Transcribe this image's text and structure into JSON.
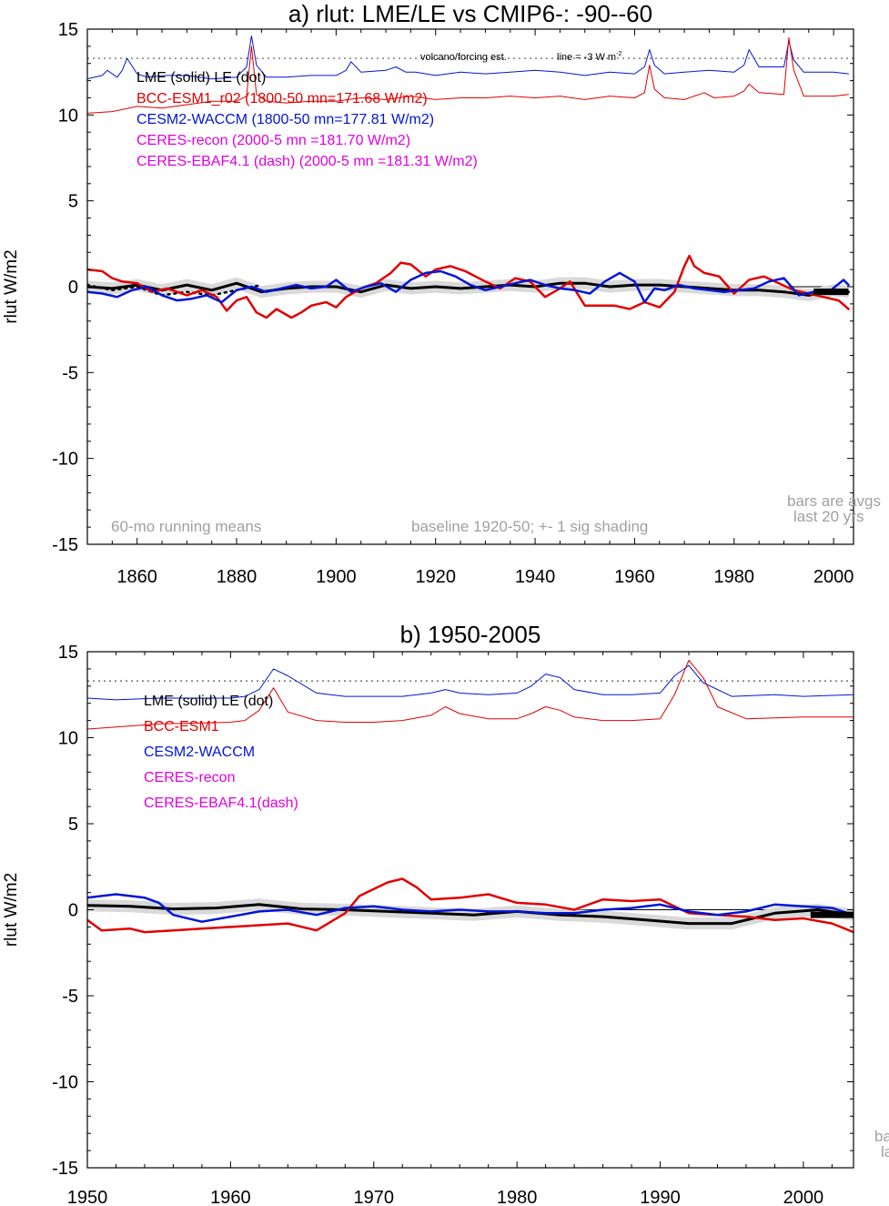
{
  "colors": {
    "lme": "#000000",
    "bcc": "#e00000",
    "cesm": "#0016d6",
    "ceres": "#e000e0",
    "note": "#a0a0a0",
    "shade": "#d9d9d9"
  },
  "chart_data": [
    {
      "type": "line",
      "title": "a) rlut: LME/LE vs CMIP6-: -90--60",
      "ylabel": "rlut W/m2",
      "xlim": [
        1850,
        2004
      ],
      "ylim": [
        -15,
        15
      ],
      "xticks": [
        1860,
        1880,
        1900,
        1920,
        1940,
        1960,
        1980,
        2000
      ],
      "yticks": [
        15,
        10,
        5,
        0,
        -5,
        -10,
        -15
      ],
      "ref_line": 13.3,
      "legend": [
        {
          "text": "LME (solid)   LE (dot)",
          "color": "lme"
        },
        {
          "text": "BCC-ESM1_r02 (1800-50 mn=171.68 W/m2)",
          "color": "bcc"
        },
        {
          "text": "CESM2-WACCM (1800-50 mn=177.81 W/m2)",
          "color": "cesm"
        },
        {
          "text": "CERES-recon (2000-5 mn =181.70 W/m2)",
          "color": "ceres"
        },
        {
          "text": "CERES-EBAF4.1 (dash) (2000-5 mn =181.31 W/m2)",
          "color": "ceres"
        }
      ],
      "annotations": {
        "volcano": "volcano/forcing est.",
        "line_label": "line = -3 W m",
        "line_sup": "-2",
        "running": "60-mo running means",
        "baseline": "baseline 1920-50; +- 1 sig shading",
        "bars1": "bars are avgs",
        "bars2": "last 20 yrs"
      },
      "series": [
        {
          "name": "CESM2-WACCM forcing",
          "color": "cesm",
          "width": 1,
          "x": [
            1850,
            1853,
            1854,
            1856,
            1857,
            1858,
            1860,
            1862,
            1866,
            1870,
            1875,
            1880,
            1882,
            1883,
            1884,
            1886,
            1890,
            1895,
            1900,
            1902,
            1903,
            1905,
            1910,
            1912,
            1914,
            1916,
            1920,
            1925,
            1930,
            1935,
            1940,
            1945,
            1950,
            1955,
            1960,
            1962,
            1963,
            1964,
            1966,
            1970,
            1975,
            1980,
            1982,
            1983,
            1985,
            1990,
            1991,
            1992,
            1994,
            2000,
            2003
          ],
          "y": [
            12.1,
            12.3,
            12.6,
            12.2,
            12.6,
            13.3,
            12.4,
            12.2,
            12.3,
            12.3,
            12.1,
            12.2,
            12.8,
            14.6,
            12.9,
            12.2,
            12.2,
            12.3,
            12.3,
            12.6,
            13.1,
            12.5,
            12.6,
            12.8,
            12.5,
            12.5,
            12.3,
            12.5,
            12.4,
            12.5,
            12.6,
            12.5,
            12.3,
            12.5,
            12.4,
            12.8,
            13.8,
            12.9,
            12.4,
            12.5,
            12.6,
            12.5,
            12.9,
            13.8,
            12.8,
            12.8,
            14.3,
            13.2,
            12.5,
            12.5,
            12.4
          ]
        },
        {
          "name": "BCC-ESM1 forcing",
          "color": "bcc",
          "width": 1,
          "x": [
            1850,
            1855,
            1860,
            1865,
            1870,
            1875,
            1880,
            1882,
            1883,
            1884,
            1886,
            1890,
            1895,
            1900,
            1905,
            1910,
            1915,
            1920,
            1925,
            1930,
            1935,
            1940,
            1945,
            1950,
            1955,
            1960,
            1962,
            1963,
            1964,
            1966,
            1970,
            1974,
            1976,
            1980,
            1982,
            1983,
            1985,
            1990,
            1991,
            1992,
            1994,
            2000,
            2003
          ],
          "y": [
            10.1,
            10.2,
            10.5,
            10.4,
            10.6,
            10.8,
            10.8,
            11.1,
            14.0,
            11.2,
            10.8,
            10.7,
            10.8,
            10.8,
            11.0,
            10.9,
            11.1,
            10.9,
            11.0,
            11.0,
            11.1,
            11.0,
            11.1,
            10.9,
            11.1,
            11.0,
            11.3,
            12.9,
            11.5,
            11.0,
            10.9,
            11.3,
            11.0,
            11.1,
            11.4,
            11.8,
            11.3,
            11.2,
            14.5,
            12.6,
            11.1,
            11.1,
            11.2
          ]
        },
        {
          "name": "LME",
          "color": "lme",
          "width": 3,
          "band": 0.35,
          "x": [
            1850,
            1855,
            1860,
            1865,
            1870,
            1875,
            1880,
            1885,
            1890,
            1895,
            1900,
            1905,
            1910,
            1915,
            1920,
            1925,
            1930,
            1935,
            1940,
            1945,
            1950,
            1955,
            1960,
            1965,
            1970,
            1975,
            1980,
            1985,
            1990,
            1995,
            2000,
            2003
          ],
          "y": [
            0.0,
            -0.1,
            0.1,
            -0.2,
            0.1,
            -0.2,
            0.2,
            -0.3,
            -0.1,
            0.0,
            0.0,
            -0.3,
            0.1,
            -0.1,
            0.0,
            -0.1,
            0.0,
            0.1,
            0.0,
            0.2,
            0.2,
            0.0,
            0.1,
            0.1,
            0.0,
            -0.1,
            -0.2,
            -0.2,
            -0.3,
            -0.5,
            -0.2,
            -0.3
          ]
        },
        {
          "name": "LE",
          "color": "lme",
          "width": 2.5,
          "dash": "2,5",
          "x": [
            1850,
            1855,
            1860,
            1865,
            1870,
            1875,
            1880,
            1885
          ],
          "y": [
            0.1,
            -0.2,
            0.0,
            -0.5,
            -0.3,
            -0.5,
            -0.2,
            0.1
          ]
        },
        {
          "name": "BCC-ESM1",
          "color": "bcc",
          "width": 2.5,
          "x": [
            1850,
            1853,
            1855,
            1857,
            1860,
            1863,
            1866,
            1870,
            1873,
            1876,
            1878,
            1880,
            1882,
            1884,
            1886,
            1888,
            1891,
            1893,
            1895,
            1898,
            1900,
            1902,
            1905,
            1908,
            1911,
            1913,
            1915,
            1918,
            1920,
            1923,
            1926,
            1930,
            1933,
            1936,
            1939,
            1942,
            1945,
            1947,
            1950,
            1953,
            1956,
            1959,
            1962,
            1965,
            1968,
            1970,
            1971,
            1972,
            1974,
            1977,
            1980,
            1983,
            1986,
            1989,
            1992,
            1995,
            1998,
            2001,
            2003
          ],
          "y": [
            1.0,
            0.9,
            0.5,
            0.3,
            0.2,
            -0.3,
            -0.1,
            -0.5,
            -0.2,
            -0.6,
            -1.4,
            -0.8,
            -0.6,
            -1.5,
            -1.8,
            -1.3,
            -1.8,
            -1.5,
            -1.1,
            -0.9,
            -1.2,
            -0.6,
            -0.1,
            0.2,
            0.8,
            1.4,
            1.3,
            0.6,
            1.0,
            1.2,
            0.9,
            0.3,
            -0.1,
            0.5,
            0.3,
            -0.6,
            -0.1,
            0.3,
            -1.1,
            -1.1,
            -1.1,
            -1.3,
            -0.9,
            -1.2,
            -0.3,
            1.2,
            1.8,
            1.2,
            0.8,
            0.6,
            -0.4,
            0.4,
            0.6,
            0.2,
            -0.2,
            -0.4,
            -0.6,
            -0.8,
            -1.3
          ]
        },
        {
          "name": "CESM2-WACCM",
          "color": "cesm",
          "width": 2.5,
          "x": [
            1850,
            1853,
            1856,
            1859,
            1862,
            1865,
            1868,
            1871,
            1874,
            1877,
            1880,
            1883,
            1886,
            1889,
            1892,
            1895,
            1898,
            1900,
            1903,
            1906,
            1909,
            1912,
            1915,
            1918,
            1921,
            1924,
            1927,
            1930,
            1933,
            1936,
            1939,
            1942,
            1945,
            1948,
            1951,
            1954,
            1957,
            1960,
            1962,
            1964,
            1966,
            1969,
            1972,
            1975,
            1978,
            1981,
            1984,
            1987,
            1990,
            1993,
            1996,
            1999,
            2002,
            2003
          ],
          "y": [
            -0.3,
            -0.4,
            -0.6,
            -0.2,
            0.0,
            -0.5,
            -0.8,
            -0.7,
            -0.5,
            -0.9,
            -0.2,
            0.0,
            -0.3,
            -0.1,
            0.1,
            -0.1,
            0.0,
            0.4,
            -0.3,
            0.0,
            0.2,
            -0.3,
            0.4,
            0.8,
            0.9,
            0.6,
            0.1,
            -0.2,
            0.0,
            0.2,
            0.4,
            0.1,
            -0.1,
            -0.2,
            -0.4,
            0.3,
            0.8,
            0.3,
            -0.9,
            -0.1,
            -0.2,
            0.1,
            -0.1,
            -0.2,
            -0.3,
            -0.2,
            -0.1,
            0.3,
            0.5,
            -0.5,
            -0.3,
            -0.3,
            0.4,
            0.1
          ]
        }
      ],
      "bars": [
        {
          "x": [
            1996,
            2003
          ],
          "y": -0.3
        }
      ]
    },
    {
      "type": "line",
      "title": "b) 1950-2005",
      "ylabel": "rlut W/m2",
      "xlim": [
        1950,
        2003.5
      ],
      "ylim": [
        -15,
        15
      ],
      "xticks": [
        1950,
        1960,
        1970,
        1980,
        1990,
        2000
      ],
      "yticks": [
        15,
        10,
        5,
        0,
        -5,
        -10,
        -15
      ],
      "ref_line": 13.3,
      "legend": [
        {
          "text": "LME (solid)      LE (dot)",
          "color": "lme"
        },
        {
          "text": "BCC-ESM1",
          "color": "bcc"
        },
        {
          "text": "CESM2-WACCM",
          "color": "cesm"
        },
        {
          "text": "CERES-recon",
          "color": "ceres"
        },
        {
          "text": "CERES-EBAF4.1(dash)",
          "color": "ceres"
        }
      ],
      "annotations": {
        "bars1": "ba",
        "bars2": "la"
      },
      "series": [
        {
          "name": "CESM2-WACCM forcing",
          "color": "cesm",
          "width": 1,
          "x": [
            1950,
            1952,
            1955,
            1958,
            1960,
            1961,
            1962,
            1963,
            1964,
            1966,
            1968,
            1970,
            1972,
            1974,
            1975,
            1976,
            1978,
            1980,
            1981,
            1982,
            1983,
            1984,
            1986,
            1988,
            1990,
            1991,
            1992,
            1993,
            1995,
            1998,
            2000,
            2003.5
          ],
          "y": [
            12.3,
            12.2,
            12.3,
            12.3,
            12.3,
            12.4,
            12.8,
            14.0,
            13.6,
            12.6,
            12.4,
            12.4,
            12.4,
            12.6,
            12.8,
            12.6,
            12.5,
            12.6,
            13.0,
            13.7,
            13.5,
            12.8,
            12.5,
            12.5,
            12.6,
            13.6,
            14.2,
            13.2,
            12.4,
            12.5,
            12.4,
            12.5
          ]
        },
        {
          "name": "BCC-ESM1 forcing",
          "color": "bcc",
          "width": 1,
          "x": [
            1950,
            1955,
            1960,
            1961,
            1962,
            1963,
            1964,
            1966,
            1968,
            1970,
            1972,
            1974,
            1975,
            1976,
            1978,
            1980,
            1981,
            1982,
            1983,
            1984,
            1986,
            1988,
            1990,
            1991,
            1992,
            1993,
            1994,
            1996,
            2000,
            2003.5
          ],
          "y": [
            10.5,
            10.8,
            10.9,
            11.0,
            11.6,
            12.9,
            11.5,
            11.0,
            10.9,
            10.9,
            11.0,
            11.3,
            11.8,
            11.4,
            11.1,
            11.1,
            11.4,
            11.8,
            11.6,
            11.2,
            11.0,
            11.0,
            11.1,
            12.5,
            14.5,
            13.5,
            11.8,
            11.1,
            11.2,
            11.2
          ]
        },
        {
          "name": "LME",
          "color": "lme",
          "width": 3,
          "band": 0.35,
          "x": [
            1950,
            1953,
            1956,
            1959,
            1962,
            1965,
            1968,
            1971,
            1974,
            1977,
            1980,
            1983,
            1986,
            1989,
            1992,
            1995,
            1998,
            2001,
            2003.5
          ],
          "y": [
            0.25,
            0.2,
            0.05,
            0.1,
            0.3,
            0.05,
            0.0,
            -0.1,
            -0.2,
            -0.3,
            -0.1,
            -0.3,
            -0.4,
            -0.6,
            -0.8,
            -0.8,
            -0.2,
            0.0,
            -0.3
          ]
        },
        {
          "name": "BCC-ESM1",
          "color": "bcc",
          "width": 2.5,
          "x": [
            1950,
            1951,
            1953,
            1954,
            1956,
            1958,
            1960,
            1962,
            1964,
            1966,
            1968,
            1969,
            1970,
            1971,
            1972,
            1973,
            1974,
            1976,
            1978,
            1980,
            1982,
            1984,
            1986,
            1988,
            1990,
            1992,
            1994,
            1996,
            1998,
            2000,
            2002,
            2003.5
          ],
          "y": [
            -0.6,
            -1.2,
            -1.1,
            -1.3,
            -1.2,
            -1.1,
            -1.0,
            -0.9,
            -0.8,
            -1.2,
            -0.2,
            0.8,
            1.2,
            1.6,
            1.8,
            1.3,
            0.6,
            0.7,
            0.9,
            0.4,
            0.3,
            0.0,
            0.6,
            0.5,
            0.6,
            -0.2,
            -0.3,
            -0.4,
            -0.6,
            -0.5,
            -0.8,
            -1.3
          ]
        },
        {
          "name": "CESM2-WACCM",
          "color": "cesm",
          "width": 2.5,
          "x": [
            1950,
            1952,
            1954,
            1955,
            1956,
            1958,
            1960,
            1962,
            1964,
            1966,
            1968,
            1970,
            1972,
            1974,
            1976,
            1978,
            1980,
            1982,
            1984,
            1986,
            1988,
            1990,
            1992,
            1994,
            1996,
            1998,
            2000,
            2002,
            2003.5
          ],
          "y": [
            0.7,
            0.9,
            0.7,
            0.4,
            -0.3,
            -0.7,
            -0.4,
            -0.1,
            0.0,
            -0.3,
            0.1,
            0.2,
            0.0,
            -0.1,
            0.0,
            -0.1,
            -0.1,
            -0.2,
            -0.2,
            0.0,
            0.1,
            0.3,
            -0.1,
            -0.3,
            -0.1,
            0.3,
            0.2,
            0.1,
            -0.3
          ]
        }
      ],
      "bars": [
        {
          "x": [
            2000.5,
            2003.5
          ],
          "y": -0.3
        }
      ]
    }
  ]
}
